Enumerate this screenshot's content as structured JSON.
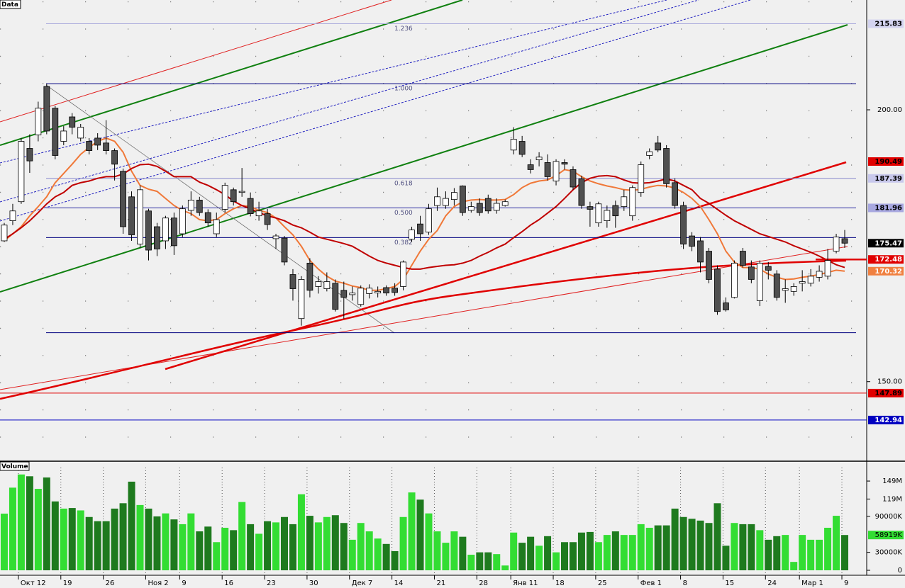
{
  "chart_data": [
    {
      "type": "candlestick",
      "title": "Data",
      "categories": [
        null,
        null,
        "Окт 12",
        null,
        null,
        null,
        null,
        "19",
        null,
        null,
        null,
        null,
        "26",
        null,
        null,
        null,
        null,
        "Ноя 2",
        null,
        null,
        null,
        "9",
        null,
        null,
        null,
        null,
        "16",
        null,
        null,
        null,
        null,
        "23",
        null,
        null,
        null,
        null,
        "30",
        null,
        null,
        null,
        null,
        "Дек 7",
        null,
        null,
        null,
        null,
        "14",
        null,
        null,
        null,
        null,
        "21",
        null,
        null,
        null,
        null,
        "28",
        null,
        null,
        null,
        "Янв 11",
        null,
        null,
        null,
        null,
        "18",
        null,
        null,
        null,
        null,
        "25",
        null,
        null,
        null,
        null,
        "Фев 1",
        null,
        null,
        null,
        null,
        "8",
        null,
        null,
        null,
        null,
        "15",
        null,
        null,
        null,
        null,
        "24",
        null,
        null,
        null,
        "Мар 1",
        null,
        null,
        null,
        null,
        "9"
      ],
      "open": [
        175.9,
        179.6,
        183.1,
        192.9,
        195.4,
        204.3,
        200.3,
        194.2,
        198.7,
        194.8,
        194.2,
        194.8,
        193.9,
        192.5,
        188.7,
        184.0,
        175.3,
        181.4,
        178.5,
        175.9,
        180.1,
        177.2,
        181.5,
        183.4,
        181.1,
        177.2,
        181.7,
        185.3,
        184.8,
        183.7,
        180.5,
        180.9,
        176.3,
        176.4,
        169.7,
        161.6,
        171.8,
        167.5,
        167.1,
        168.1,
        166.8,
        166.0,
        164.2,
        166.2,
        166.3,
        167.3,
        167.2,
        167.5,
        176.2,
        179.0,
        177.5,
        182.4,
        182.4,
        183.5,
        186.0,
        181.5,
        182.8,
        183.7,
        181.5,
        182.4,
        192.6,
        194.2,
        189.9,
        190.8,
        190.3,
        186.9,
        190.3,
        189.0,
        187.3,
        182.2,
        179.2,
        179.6,
        182.4,
        182.2,
        180.5,
        184.8,
        191.6,
        193.9,
        192.9,
        186.6,
        182.4,
        176.8,
        175.9,
        174.0,
        170.7,
        164.5,
        165.5,
        174.0,
        171.1,
        164.9,
        171.2,
        169.8,
        166.8,
        166.6,
        168.1,
        168.1,
        169.2,
        169.4,
        174.0,
        176.3
      ],
      "high": [
        179.2,
        182.7,
        194.8,
        195.5,
        201.5,
        204.8,
        200.7,
        197.0,
        199.4,
        197.4,
        194.8,
        195.7,
        198.1,
        192.9,
        189.2,
        185.0,
        186.1,
        181.8,
        179.2,
        180.5,
        181.1,
        182.4,
        185.0,
        184.0,
        181.7,
        181.1,
        186.6,
        185.7,
        189.3,
        184.8,
        183.1,
        181.8,
        177.2,
        176.8,
        170.7,
        169.4,
        172.7,
        169.4,
        170.1,
        168.8,
        168.4,
        167.5,
        167.7,
        167.9,
        167.5,
        167.7,
        168.1,
        172.3,
        178.5,
        180.5,
        182.7,
        185.7,
        185.0,
        185.6,
        186.1,
        183.1,
        183.7,
        184.4,
        183.7,
        183.5,
        196.8,
        195.2,
        190.9,
        192.2,
        191.8,
        190.9,
        190.9,
        189.6,
        187.9,
        183.1,
        183.1,
        182.4,
        183.3,
        185.3,
        186.1,
        190.5,
        192.9,
        195.2,
        193.5,
        187.4,
        183.1,
        177.5,
        176.6,
        174.6,
        171.4,
        165.5,
        172.3,
        174.6,
        172.3,
        172.3,
        172.0,
        170.5,
        168.8,
        168.1,
        170.5,
        170.7,
        171.4,
        174.4,
        177.2,
        177.9
      ],
      "low": [
        175.7,
        178.8,
        182.7,
        188.4,
        194.2,
        195.5,
        190.9,
        193.5,
        195.5,
        194.2,
        191.8,
        192.6,
        191.8,
        187.0,
        177.2,
        175.9,
        174.6,
        172.3,
        173.1,
        174.4,
        173.3,
        176.6,
        180.5,
        180.5,
        178.5,
        176.6,
        181.1,
        182.4,
        184.0,
        180.4,
        179.6,
        177.9,
        174.4,
        171.4,
        164.9,
        160.3,
        165.5,
        166.2,
        166.6,
        162.9,
        161.6,
        164.9,
        163.8,
        165.3,
        165.5,
        165.8,
        165.8,
        166.8,
        175.7,
        175.9,
        177.0,
        181.4,
        181.8,
        182.4,
        180.5,
        181.1,
        180.5,
        180.9,
        180.9,
        182.2,
        191.8,
        191.3,
        188.3,
        189.6,
        187.0,
        186.1,
        189.0,
        185.3,
        181.8,
        178.5,
        178.5,
        178.3,
        178.3,
        181.4,
        179.6,
        184.0,
        190.9,
        192.2,
        185.7,
        181.8,
        174.4,
        174.0,
        170.1,
        168.1,
        162.3,
        162.9,
        165.3,
        171.0,
        168.1,
        163.9,
        168.8,
        164.9,
        164.5,
        165.8,
        166.6,
        167.5,
        168.4,
        168.8,
        173.6,
        174.6
      ],
      "close": [
        178.8,
        181.4,
        194.2,
        190.6,
        200.3,
        196.1,
        191.6,
        196.1,
        196.8,
        196.8,
        192.5,
        193.5,
        192.5,
        190.0,
        178.5,
        177.0,
        185.3,
        174.2,
        174.4,
        180.1,
        175.0,
        181.8,
        183.4,
        181.1,
        179.2,
        179.8,
        186.1,
        183.1,
        185.0,
        180.9,
        181.4,
        178.9,
        176.8,
        172.0,
        167.1,
        168.8,
        166.8,
        168.4,
        168.4,
        163.3,
        165.5,
        166.3,
        167.2,
        167.2,
        166.6,
        166.3,
        166.4,
        172.0,
        177.9,
        177.2,
        181.8,
        184.0,
        183.7,
        184.8,
        181.1,
        182.2,
        181.1,
        181.4,
        182.8,
        183.1,
        194.6,
        191.8,
        189.0,
        191.3,
        187.7,
        190.5,
        190.0,
        185.8,
        182.4,
        181.7,
        182.7,
        181.5,
        180.5,
        184.0,
        185.7,
        189.9,
        192.3,
        192.6,
        186.4,
        182.4,
        175.3,
        174.9,
        172.0,
        168.8,
        162.9,
        163.2,
        171.8,
        171.4,
        168.8,
        171.8,
        170.5,
        165.5,
        167.1,
        167.5,
        168.4,
        169.4,
        170.3,
        172.3,
        176.6,
        175.47
      ],
      "up_color": "#ffffff",
      "down_color": "#505050",
      "moving_averages": [
        {
          "color": "#f07838",
          "values": [
            175.9,
            177.2,
            178.5,
            180.5,
            182.2,
            184.0,
            186.6,
            188.3,
            190.0,
            191.8,
            193.1,
            194.2,
            194.8,
            194.2,
            192.2,
            188.7,
            186.1,
            185.4,
            185.0,
            183.7,
            182.4,
            181.5,
            180.9,
            179.8,
            179.6,
            179.8,
            180.9,
            181.8,
            182.4,
            182.2,
            181.5,
            181.1,
            180.1,
            178.5,
            177.0,
            174.9,
            172.3,
            170.7,
            169.4,
            168.5,
            168.1,
            167.6,
            167.3,
            166.8,
            166.8,
            167.1,
            167.5,
            168.8,
            171.4,
            174.0,
            176.2,
            177.8,
            180.5,
            182.2,
            183.1,
            183.4,
            183.5,
            183.4,
            183.4,
            183.5,
            184.4,
            185.7,
            186.5,
            186.9,
            187.1,
            187.9,
            189.0,
            188.7,
            187.7,
            186.9,
            186.4,
            186.0,
            185.7,
            185.3,
            185.2,
            185.4,
            185.8,
            186.1,
            186.0,
            185.6,
            184.8,
            183.7,
            182.2,
            179.8,
            177.2,
            174.0,
            172.0,
            171.0,
            171.0,
            170.7,
            169.8,
            169.2,
            168.8,
            168.9,
            169.2,
            169.4,
            169.7,
            170.1,
            170.5,
            170.32
          ]
        },
        {
          "color": "#c00000",
          "values": [
            176.2,
            177.2,
            178.3,
            179.6,
            181.1,
            182.7,
            184.0,
            184.8,
            186.1,
            186.6,
            186.9,
            187.4,
            187.7,
            187.7,
            188.2,
            189.2,
            189.9,
            190.0,
            189.6,
            188.7,
            187.7,
            187.7,
            187.7,
            186.7,
            186.1,
            185.3,
            184.4,
            183.2,
            182.4,
            181.8,
            181.1,
            180.5,
            180.1,
            179.6,
            178.8,
            178.3,
            177.5,
            176.6,
            176.2,
            175.8,
            175.4,
            174.9,
            174.0,
            173.1,
            172.3,
            171.8,
            171.4,
            171.0,
            170.7,
            170.7,
            171.0,
            171.2,
            171.4,
            171.5,
            171.8,
            172.3,
            173.1,
            173.8,
            174.6,
            175.3,
            176.5,
            177.6,
            178.8,
            179.8,
            181.0,
            182.2,
            183.7,
            185.3,
            186.6,
            187.4,
            187.8,
            187.9,
            187.7,
            187.1,
            186.6,
            186.5,
            186.6,
            186.9,
            187.3,
            186.9,
            186.1,
            185.3,
            183.7,
            182.8,
            181.7,
            180.6,
            179.6,
            178.8,
            178.0,
            177.2,
            176.7,
            176.2,
            175.7,
            175.0,
            174.4,
            173.8,
            173.1,
            172.3,
            171.5,
            171.0
          ]
        }
      ],
      "fib_levels": [
        {
          "label": "1.236",
          "value": 215.83,
          "color": "#a8a8dc"
        },
        {
          "label": "1.000",
          "value": 204.8,
          "color": "#000080"
        },
        {
          "label": "0.618",
          "value": 187.39,
          "color": "#8888cc"
        },
        {
          "label": "0.500",
          "value": 181.96,
          "color": "#2828a0"
        },
        {
          "label": "0.382",
          "value": 176.5,
          "color": "#000080"
        },
        {
          "label": null,
          "value": 159.0,
          "color": "#000080"
        }
      ],
      "price_labels": [
        {
          "value": 215.83,
          "color": "#d4d4f0",
          "text_color": "#000000"
        },
        {
          "value": 190.49,
          "color": "#e00000",
          "text_color": "#000000"
        },
        {
          "value": 187.39,
          "color": "#c8c8ec",
          "text_color": "#000000"
        },
        {
          "value": 181.96,
          "color": "#a8a8e0",
          "text_color": "#000000"
        },
        {
          "value": 175.47,
          "color": "#000000",
          "text_color": "#ffffff"
        },
        {
          "value": 172.48,
          "color": "#e00000",
          "text_color": "#ffffff",
          "line": "short"
        },
        {
          "value": 170.32,
          "color": "#f08040",
          "text_color": "#ffffff"
        },
        {
          "value": 147.89,
          "color": "#e00000",
          "text_color": "#000000",
          "line": "full"
        },
        {
          "value": 142.94,
          "color": "#0000c0",
          "text_color": "#ffffff",
          "line": "full"
        }
      ],
      "ylim": [
        135.5,
        220.2
      ],
      "yticks": [
        {
          "value": 150,
          "label": "150.00"
        },
        {
          "value": 200,
          "label": "200.00"
        }
      ]
    },
    {
      "type": "bar",
      "title": "Volume",
      "values": [
        94.6,
        138,
        160,
        157,
        136,
        155,
        115,
        103,
        104,
        100,
        89,
        82,
        82,
        103,
        112,
        148,
        109,
        103,
        90,
        95,
        85,
        77,
        95,
        65,
        73,
        47,
        71,
        67,
        114,
        77,
        61,
        82,
        80,
        89,
        77,
        127,
        91,
        80,
        89,
        92,
        79,
        51,
        79,
        65,
        53,
        44,
        32,
        89,
        130,
        118,
        95,
        65,
        46,
        65,
        56,
        26,
        30,
        30,
        27,
        8,
        63,
        46,
        56,
        41,
        57,
        30,
        47,
        47,
        63,
        64,
        47,
        59,
        65,
        59,
        59,
        77,
        71,
        75,
        75,
        103,
        89,
        86,
        83,
        79,
        112,
        41,
        79,
        77,
        77,
        67,
        51,
        57,
        59,
        14,
        59,
        51,
        51,
        71,
        91,
        58.919
      ],
      "up_color": "#33dd33",
      "down_color": "#1e7a1e",
      "current_value": {
        "value": 58.919,
        "label": "58919K",
        "color": "#33dd33"
      },
      "ylim": [
        0,
        181
      ],
      "yticks": [
        {
          "value": 149,
          "label": "149M"
        },
        {
          "value": 119,
          "label": "119M"
        },
        {
          "value": 90,
          "label": "90000K"
        },
        {
          "value": 30,
          "label": "30000K"
        },
        0
      ]
    }
  ]
}
